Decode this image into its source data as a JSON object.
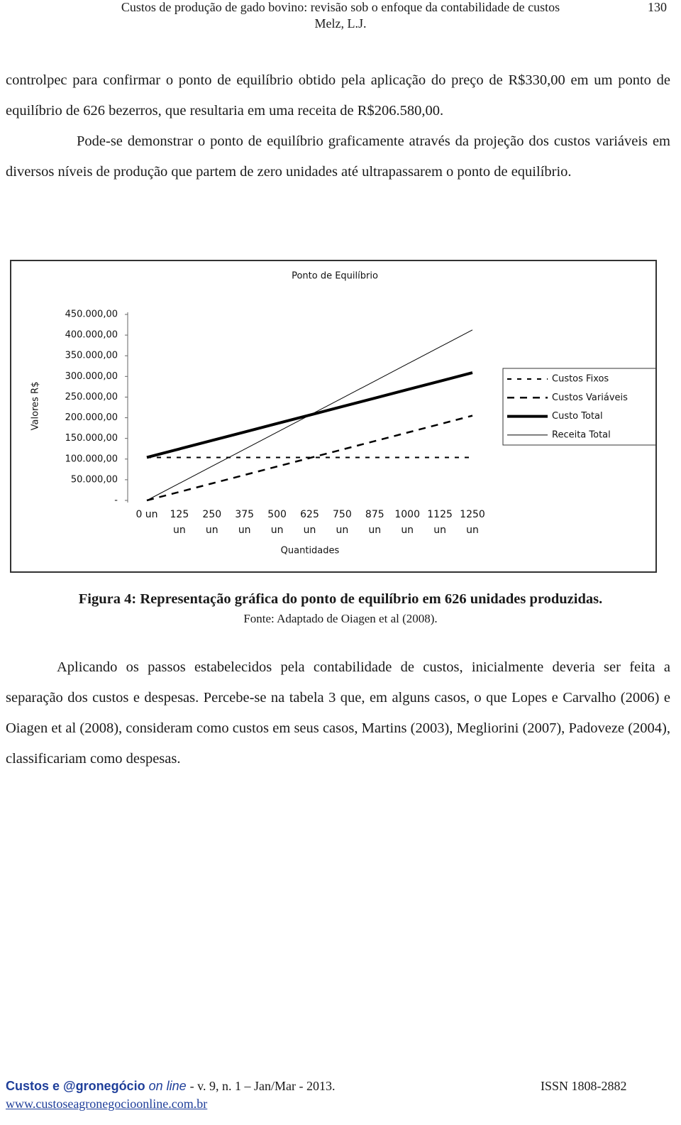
{
  "header": {
    "title": "Custos de produção de gado bovino: revisão sob o enfoque da contabilidade de custos",
    "author": "Melz, L.J.",
    "page": "130"
  },
  "paragraphs": [
    "controlpec para confirmar o ponto de equilíbrio obtido pela aplicação do preço de R$330,00 em um ponto de equilíbrio de 626 bezerros, que resultaria em uma receita de R$206.580,00.",
    "Pode-se demonstrar o ponto de equilíbrio graficamente através da projeção dos custos variáveis em diversos níveis de produção que partem de zero unidades até ultrapassarem o ponto de equilíbrio."
  ],
  "chart_data": {
    "type": "line",
    "title": "Ponto de Equilíbrio",
    "x_label": "Quantidades",
    "y_label": "Valores R$",
    "categories": [
      "0 un",
      "125 un",
      "250 un",
      "375 un",
      "500 un",
      "625 un",
      "750 un",
      "875 un",
      "1000 un",
      "1125 un",
      "1250 un"
    ],
    "series": [
      {
        "name": "Custos Fixos",
        "color": "#000000",
        "style": "dotted",
        "values": [
          104000,
          104000,
          104000,
          104000,
          104000,
          104000,
          104000,
          104000,
          104000,
          104000,
          104000
        ]
      },
      {
        "name": "Custos Variáveis",
        "color": "#000000",
        "style": "dashed",
        "values": [
          0,
          20500,
          41000,
          61500,
          82000,
          102500,
          123000,
          143500,
          164000,
          184500,
          205000
        ]
      },
      {
        "name": "Custo Total",
        "color": "#000000",
        "style": "thick",
        "values": [
          104000,
          124500,
          145000,
          165500,
          186000,
          206500,
          227000,
          247500,
          268000,
          288500,
          309000
        ]
      },
      {
        "name": "Receita Total",
        "color": "#000000",
        "style": "thin",
        "values": [
          0,
          41250,
          82500,
          123750,
          165000,
          206250,
          247500,
          288750,
          330000,
          371250,
          412500
        ]
      }
    ],
    "ylim": [
      0,
      450000
    ],
    "yticks": [
      {
        "value": 0,
        "label": "-"
      },
      {
        "value": 50000,
        "label": "50.000,00"
      },
      {
        "value": 100000,
        "label": "100.000,00"
      },
      {
        "value": 150000,
        "label": "150.000,00"
      },
      {
        "value": 200000,
        "label": "200.000,00"
      },
      {
        "value": 250000,
        "label": "250.000,00"
      },
      {
        "value": 300000,
        "label": "300.000,00"
      },
      {
        "value": 350000,
        "label": "350.000,00"
      },
      {
        "value": 400000,
        "label": "400.000,00"
      },
      {
        "value": 450000,
        "label": "450.000,00"
      }
    ],
    "grid": false,
    "legend": "right"
  },
  "figure": {
    "caption": "Figura 4: Representação gráfica do ponto de equilíbrio em 626 unidades produzidas.",
    "source": "Fonte: Adaptado de Oiagen et al (2008)."
  },
  "paragraphs_after": [
    "Aplicando os passos estabelecidos pela contabilidade de custos, inicialmente deveria ser feita a separação dos custos e despesas. Percebe-se na tabela 3 que, em alguns casos, o que Lopes e Carvalho (2006) e Oiagen et al (2008), consideram como custos em seus casos, Martins (2003), Megliorini (2007), Padoveze (2004), classificariam como despesas."
  ],
  "footer": {
    "journal": "Custos e @gronegócio",
    "online": "on line",
    "issue": "- v. 9, n. 1 – Jan/Mar - 2013.",
    "issn": "ISSN 1808-2882",
    "url": "www.custoseagronegocioonline.com.br"
  }
}
